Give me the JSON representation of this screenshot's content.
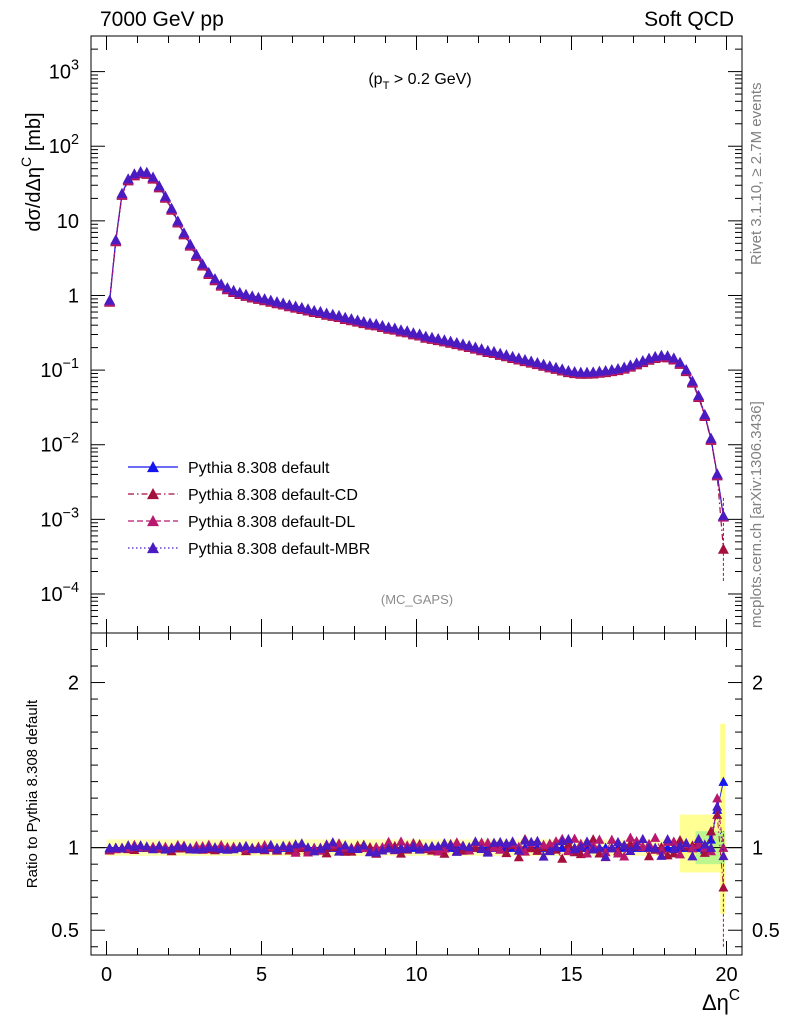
{
  "header": {
    "left": "7000 GeV pp",
    "right": "Soft QCD"
  },
  "side_labels": {
    "top": "Rivet 3.1.10, ≥ 2.7M events",
    "bottom": "mcplots.cern.ch [arXiv:1306.3436]"
  },
  "chart_data": {
    "type": "scatter",
    "cut_annotation": "(p_T > 0.2 GeV)",
    "watermark": "(MC_GAPS)",
    "xlabel": "Δη^C",
    "ylabel": "dσ/dΔη^C [mb]",
    "ratio_ylabel": "Ratio to Pythia 8.308 default",
    "xlim": [
      -0.5,
      20.5
    ],
    "ylim": [
      3e-05,
      3000
    ],
    "yscale": "log",
    "ratio_ylim": [
      0.35,
      2.3
    ],
    "x_ticks": [
      "0",
      "5",
      "10",
      "15",
      "20"
    ],
    "y_ticks": [
      "10^-4",
      "10^-3",
      "10^-2",
      "10^-1",
      "1",
      "10",
      "10^2",
      "10^3"
    ],
    "ratio_ticks": [
      "0.5",
      "1",
      "2"
    ],
    "legend_position": "bottom-left",
    "series": [
      {
        "name": "Pythia 8.308 default",
        "color": "#1515ee",
        "dash": "solid",
        "ratio_offset": 0.0
      },
      {
        "name": "Pythia 8.308 default-CD",
        "color": "#a50f3c",
        "dash": "dashdot",
        "ratio_offset": -0.02
      },
      {
        "name": "Pythia 8.308 default-DL",
        "color": "#b8186e",
        "dash": "dashed",
        "ratio_offset": 0.015
      },
      {
        "name": "Pythia 8.308 default-MBR",
        "color": "#4b1bc2",
        "dash": "dotted",
        "ratio_offset": 0.01
      }
    ],
    "x": [
      0.1,
      0.3,
      0.5,
      0.7,
      0.9,
      1.1,
      1.3,
      1.5,
      1.7,
      1.9,
      2.1,
      2.3,
      2.5,
      2.7,
      2.9,
      3.1,
      3.3,
      3.5,
      3.7,
      3.9,
      4.1,
      4.3,
      4.5,
      4.7,
      4.9,
      5.1,
      5.3,
      5.5,
      5.7,
      5.9,
      6.1,
      6.3,
      6.5,
      6.7,
      6.9,
      7.1,
      7.3,
      7.5,
      7.7,
      7.9,
      8.1,
      8.3,
      8.5,
      8.7,
      8.9,
      9.1,
      9.3,
      9.5,
      9.7,
      9.9,
      10.1,
      10.3,
      10.5,
      10.7,
      10.9,
      11.1,
      11.3,
      11.5,
      11.7,
      11.9,
      12.1,
      12.3,
      12.5,
      12.7,
      12.9,
      13.1,
      13.3,
      13.5,
      13.7,
      13.9,
      14.1,
      14.3,
      14.5,
      14.7,
      14.9,
      15.1,
      15.3,
      15.5,
      15.7,
      15.9,
      16.1,
      16.3,
      16.5,
      16.7,
      16.9,
      17.1,
      17.3,
      17.5,
      17.7,
      17.9,
      18.1,
      18.3,
      18.5,
      18.7,
      18.9,
      19.1,
      19.3,
      19.5,
      19.7,
      19.9
    ],
    "y": [
      0.85,
      5.5,
      23,
      36,
      42,
      45,
      44,
      38,
      29,
      21,
      14.5,
      9.8,
      6.8,
      4.8,
      3.5,
      2.6,
      2.0,
      1.65,
      1.4,
      1.25,
      1.15,
      1.08,
      1.02,
      0.97,
      0.93,
      0.89,
      0.85,
      0.81,
      0.78,
      0.74,
      0.71,
      0.68,
      0.65,
      0.62,
      0.6,
      0.57,
      0.55,
      0.53,
      0.5,
      0.48,
      0.46,
      0.44,
      0.42,
      0.41,
      0.39,
      0.37,
      0.36,
      0.34,
      0.33,
      0.31,
      0.3,
      0.28,
      0.27,
      0.26,
      0.25,
      0.24,
      0.23,
      0.22,
      0.21,
      0.2,
      0.19,
      0.18,
      0.175,
      0.165,
      0.158,
      0.15,
      0.143,
      0.136,
      0.13,
      0.124,
      0.118,
      0.112,
      0.107,
      0.102,
      0.097,
      0.094,
      0.092,
      0.092,
      0.093,
      0.095,
      0.097,
      0.1,
      0.103,
      0.108,
      0.115,
      0.123,
      0.132,
      0.142,
      0.15,
      0.155,
      0.153,
      0.143,
      0.125,
      0.1,
      0.07,
      0.045,
      0.025,
      0.012,
      0.004,
      0.0011
    ],
    "ratio_band_y": [
      0.92,
      1.08
    ],
    "ratio_end_x": [
      19.3,
      19.5,
      19.7,
      19.9
    ],
    "ratio_end_values": [
      [
        0.99,
        1.05,
        1.23,
        1.4
      ],
      [
        0.97,
        1.1,
        1.2,
        0.76
      ],
      [
        1.0,
        0.98,
        1.3,
        1.0
      ],
      [
        1.02,
        1.0,
        1.25,
        0.95
      ]
    ]
  }
}
